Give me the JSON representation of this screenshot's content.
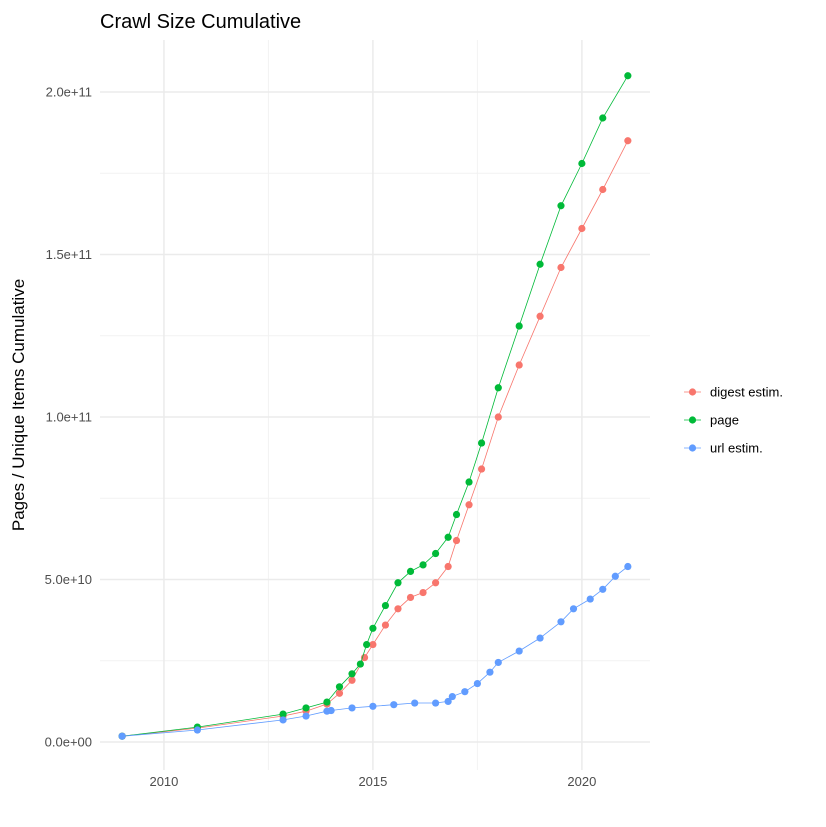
{
  "chart_data": {
    "type": "line",
    "title": "Crawl Size Cumulative",
    "xlabel": "",
    "ylabel": "Pages / Unique Items Cumulative",
    "xlim": [
      2008.47,
      2021.63
    ],
    "ylim": [
      -8600000000.0,
      216000000000.0
    ],
    "x_ticks": [
      2010,
      2015,
      2020
    ],
    "x_tick_labels": [
      "2010",
      "2015",
      "2020"
    ],
    "y_ticks": [
      0,
      50000000000.0,
      100000000000.0,
      150000000000.0,
      200000000000.0
    ],
    "y_tick_labels": [
      "0.0e+00",
      "5.0e+10",
      "1.0e+11",
      "1.5e+11",
      "2.0e+11"
    ],
    "grid": true,
    "legend_placement": "right",
    "markers": "points connected by lines",
    "series": [
      {
        "name": "digest estim.",
        "color": "#F8766D",
        "x": [
          2009.0,
          2010.8,
          2012.85,
          2013.4,
          2013.9,
          2014.2,
          2014.5,
          2014.8,
          2015.0,
          2015.3,
          2015.6,
          2015.9,
          2016.2,
          2016.5,
          2016.8,
          2017.0,
          2017.3,
          2017.6,
          2018.0,
          2018.5,
          2019.0,
          2019.5,
          2020.0,
          2020.5,
          2021.1
        ],
        "y": [
          1800000000.0,
          4300000000.0,
          8000000000.0,
          9500000000.0,
          11700000000.0,
          15000000000.0,
          19000000000.0,
          26000000000.0,
          30000000000.0,
          36000000000.0,
          41000000000.0,
          44500000000.0,
          46000000000.0,
          49000000000.0,
          54000000000.0,
          62000000000.0,
          73000000000.0,
          84000000000.0,
          100000000000.0,
          116000000000.0,
          131000000000.0,
          146000000000.0,
          158000000000.0,
          170000000000.0,
          185000000000.0
        ]
      },
      {
        "name": "page",
        "color": "#00BA38",
        "x": [
          2009.0,
          2010.8,
          2012.85,
          2013.4,
          2013.9,
          2014.2,
          2014.5,
          2014.7,
          2014.85,
          2015.0,
          2015.3,
          2015.6,
          2015.9,
          2016.2,
          2016.5,
          2016.8,
          2017.0,
          2017.3,
          2017.6,
          2018.0,
          2018.5,
          2019.0,
          2019.5,
          2020.0,
          2020.5,
          2021.1
        ],
        "y": [
          1800000000.0,
          4600000000.0,
          8600000000.0,
          10500000000.0,
          12300000000.0,
          17000000000.0,
          21000000000.0,
          24000000000.0,
          30000000000.0,
          35000000000.0,
          42000000000.0,
          49000000000.0,
          52500000000.0,
          54500000000.0,
          58000000000.0,
          63000000000.0,
          70000000000.0,
          80000000000.0,
          92000000000.0,
          109000000000.0,
          128000000000.0,
          147000000000.0,
          165000000000.0,
          178000000000.0,
          192000000000.0,
          205000000000.0
        ]
      },
      {
        "name": "url estim.",
        "color": "#619CFF",
        "x": [
          2009.0,
          2010.8,
          2012.85,
          2013.4,
          2013.9,
          2014.0,
          2014.5,
          2015.0,
          2015.5,
          2016.0,
          2016.5,
          2016.8,
          2016.9,
          2017.2,
          2017.5,
          2017.8,
          2018.0,
          2018.5,
          2019.0,
          2019.5,
          2019.8,
          2020.2,
          2020.5,
          2020.8,
          2021.1
        ],
        "y": [
          1800000000.0,
          3700000000.0,
          6800000000.0,
          8000000000.0,
          9500000000.0,
          9700000000.0,
          10500000000.0,
          11000000000.0,
          11500000000.0,
          12000000000.0,
          12000000000.0,
          12500000000.0,
          14000000000.0,
          15500000000.0,
          18000000000.0,
          21500000000.0,
          24500000000.0,
          28000000000.0,
          32000000000.0,
          37000000000.0,
          41000000000.0,
          44000000000.0,
          47000000000.0,
          51000000000.0,
          54000000000.0
        ]
      }
    ]
  }
}
